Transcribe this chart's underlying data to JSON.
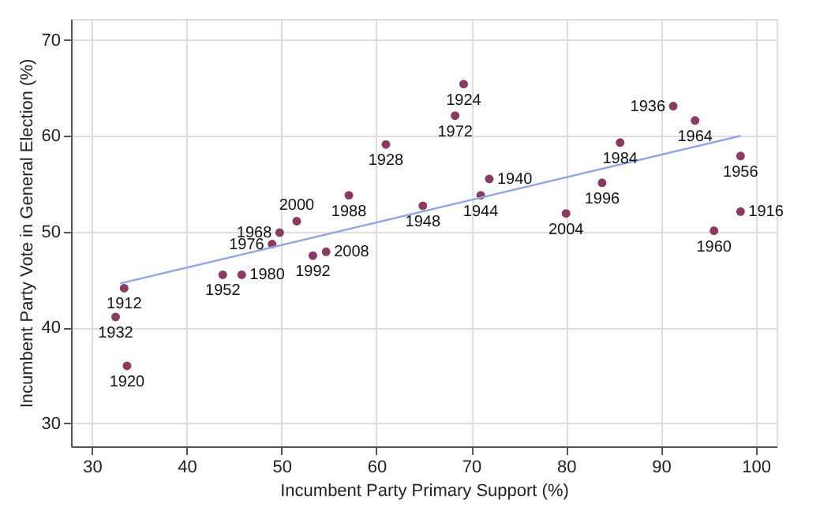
{
  "chart_data": {
    "type": "scatter",
    "xlabel": "Incumbent Party Primary Support (%)",
    "ylabel": "Incumbent Party Vote in General Election (%)",
    "xlim": [
      27.8,
      102.2
    ],
    "ylim": [
      27.6,
      72.2
    ],
    "xticks": [
      30,
      40,
      50,
      60,
      70,
      80,
      90,
      100
    ],
    "yticks": [
      30,
      40,
      50,
      60,
      70
    ],
    "grid": true,
    "marker": "circle",
    "series": [
      {
        "color": "#8b3a62",
        "x": [
          33.4,
          32.5,
          33.7,
          43.8,
          45.8,
          49.0,
          49.8,
          51.6,
          53.3,
          54.7,
          57.1,
          61.0,
          64.9,
          68.3,
          69.2,
          71.9,
          71.0,
          80.0,
          83.8,
          85.7,
          91.3,
          93.6,
          98.4,
          98.4,
          95.6
        ],
        "values": [
          44.1,
          41.1,
          36.0,
          45.5,
          45.5,
          48.7,
          49.9,
          51.1,
          47.5,
          47.9,
          53.8,
          59.1,
          52.7,
          62.1,
          65.4,
          55.5,
          53.8,
          51.9,
          55.1,
          59.3,
          63.1,
          61.6,
          57.9,
          52.1,
          50.1
        ]
      },
      {
        "type": "line",
        "marker": "none",
        "color": "#8fa8e0",
        "x": [
          33.0,
          98.4
        ],
        "values": [
          44.6,
          60.0
        ]
      }
    ],
    "annotations": [
      {
        "text": "1912",
        "x": 33.4,
        "y": 44.1
      },
      {
        "text": "1932",
        "x": 32.5,
        "y": 41.1
      },
      {
        "text": "1920",
        "x": 33.7,
        "y": 36.0
      },
      {
        "text": "1952",
        "x": 43.8,
        "y": 45.5
      },
      {
        "text": "1980",
        "x": 45.8,
        "y": 45.5
      },
      {
        "text": "1976",
        "x": 49.0,
        "y": 48.7
      },
      {
        "text": "1968",
        "x": 49.8,
        "y": 49.9
      },
      {
        "text": "2000",
        "x": 51.6,
        "y": 51.1
      },
      {
        "text": "1992",
        "x": 53.3,
        "y": 47.5
      },
      {
        "text": "2008",
        "x": 54.7,
        "y": 47.9
      },
      {
        "text": "1988",
        "x": 57.1,
        "y": 53.8
      },
      {
        "text": "1928",
        "x": 61.0,
        "y": 59.1
      },
      {
        "text": "1948",
        "x": 64.9,
        "y": 52.7
      },
      {
        "text": "1972",
        "x": 68.3,
        "y": 62.1
      },
      {
        "text": "1924",
        "x": 69.2,
        "y": 65.4
      },
      {
        "text": "1940",
        "x": 71.9,
        "y": 55.5
      },
      {
        "text": "1944",
        "x": 71.0,
        "y": 53.8
      },
      {
        "text": "2004",
        "x": 80.0,
        "y": 51.9
      },
      {
        "text": "1996",
        "x": 83.8,
        "y": 55.1
      },
      {
        "text": "1984",
        "x": 85.7,
        "y": 59.3
      },
      {
        "text": "1936",
        "x": 91.3,
        "y": 63.1
      },
      {
        "text": "1964",
        "x": 93.6,
        "y": 61.6
      },
      {
        "text": "1956",
        "x": 98.4,
        "y": 57.9
      },
      {
        "text": "1916",
        "x": 98.4,
        "y": 52.1
      },
      {
        "text": "1960",
        "x": 95.6,
        "y": 50.1
      }
    ]
  }
}
